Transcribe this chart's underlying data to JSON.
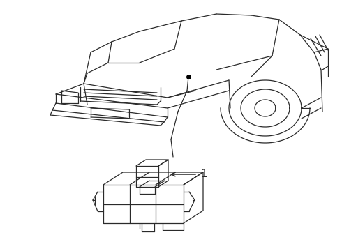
{
  "background_color": "#ffffff",
  "line_color": "#2a2a2a",
  "line_width": 0.9,
  "fig_width": 4.9,
  "fig_height": 3.6,
  "dpi": 100,
  "label_1_text": "1"
}
